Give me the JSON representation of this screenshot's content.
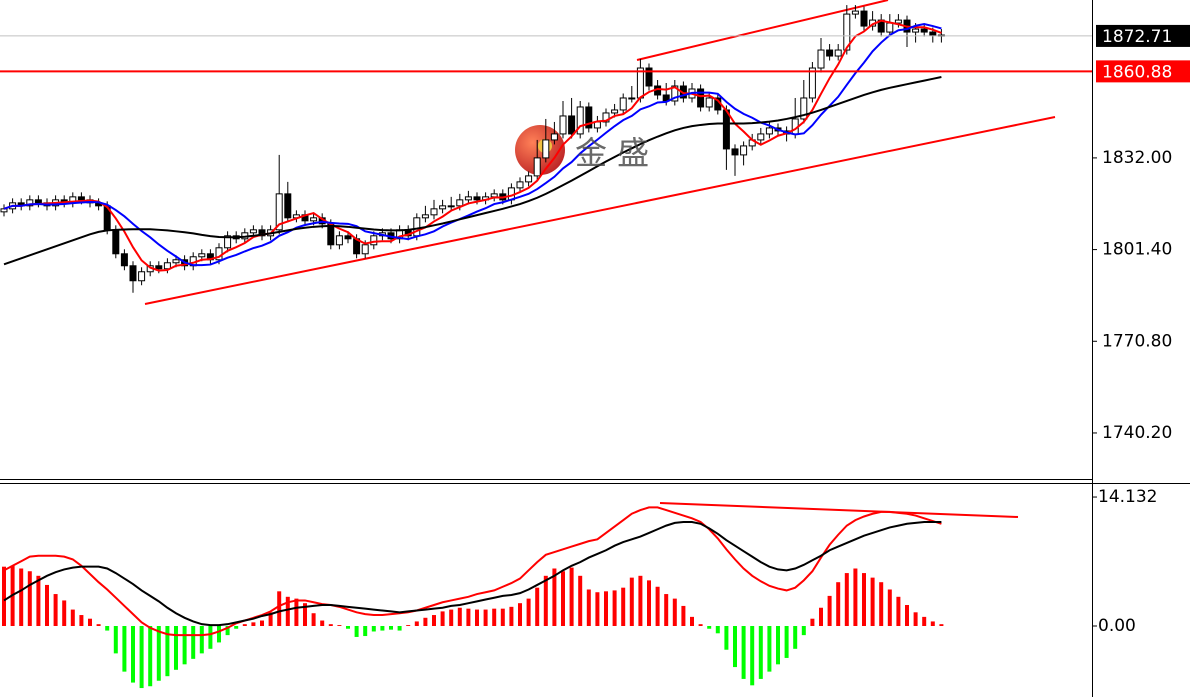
{
  "chart_data": [
    {
      "type": "candlestick",
      "ylim": [
        1724.5,
        1884.7
      ],
      "yticks": [
        {
          "value": 1740.2,
          "label": "1740.20"
        },
        {
          "value": 1770.8,
          "label": "1770.80"
        },
        {
          "value": 1801.4,
          "label": "1801.40"
        },
        {
          "value": 1832.0,
          "label": "1832.00"
        }
      ],
      "open": [
        1814,
        1815,
        1817,
        1816,
        1818,
        1817,
        1816,
        1818,
        1817,
        1819,
        1818,
        1817,
        1816,
        1808,
        1800,
        1796,
        1791,
        1794,
        1796,
        1795,
        1797,
        1798,
        1796,
        1799,
        1800,
        1798,
        1802,
        1806,
        1805,
        1807,
        1808,
        1806,
        1808,
        1820,
        1812,
        1813,
        1811,
        1812,
        1810,
        1803,
        1806,
        1805,
        1800,
        1803,
        1806,
        1807,
        1805,
        1808,
        1806,
        1812,
        1813,
        1815,
        1816,
        1816,
        1818,
        1819,
        1818,
        1819,
        1820,
        1818,
        1822,
        1824,
        1826,
        1832,
        1838,
        1840,
        1846,
        1840,
        1849,
        1842,
        1844,
        1847,
        1848,
        1852,
        1852,
        1862,
        1856,
        1853,
        1851,
        1856,
        1852,
        1855,
        1849,
        1852,
        1848,
        1835,
        1833,
        1836,
        1838,
        1840,
        1842,
        1841,
        1840,
        1845,
        1852,
        1862,
        1868,
        1866,
        1868,
        1880,
        1881,
        1876,
        1878,
        1874,
        1877,
        1878,
        1874,
        1875,
        1874,
        1873
      ],
      "high": [
        1816.5,
        1818.5,
        1818.5,
        1819.5,
        1819.5,
        1818.5,
        1819.5,
        1819.5,
        1820.5,
        1820.5,
        1819.5,
        1818.5,
        1817.5,
        1809.5,
        1801.5,
        1797.5,
        1795.5,
        1797.5,
        1797.5,
        1798.5,
        1799.5,
        1799.5,
        1800.5,
        1801.5,
        1801.5,
        1803.5,
        1807.5,
        1807.5,
        1808.5,
        1809.5,
        1809.5,
        1809.5,
        1833,
        1824,
        1814.5,
        1814.5,
        1813.5,
        1813.5,
        1811.5,
        1807.5,
        1807.5,
        1806.5,
        1804.5,
        1807.5,
        1808.5,
        1808.5,
        1809.5,
        1809.5,
        1813.5,
        1816,
        1818,
        1818,
        1819,
        1820,
        1821,
        1820.5,
        1820.5,
        1821.5,
        1821.5,
        1823.5,
        1825.5,
        1827.5,
        1838,
        1845,
        1844,
        1851,
        1852,
        1851,
        1850.5,
        1846,
        1848.5,
        1850,
        1853.5,
        1856,
        1865,
        1863.5,
        1858,
        1857,
        1858,
        1857.5,
        1857,
        1856.5,
        1853.5,
        1853.5,
        1849.5,
        1836.5,
        1837.5,
        1840,
        1842,
        1844,
        1843.5,
        1842.5,
        1852,
        1858,
        1864,
        1872,
        1870,
        1870,
        1883,
        1883,
        1882.5,
        1881,
        1880,
        1880,
        1880,
        1879.5,
        1877,
        1876.5,
        1875.5,
        1875
      ],
      "low": [
        1812.5,
        1813.5,
        1814.5,
        1814.5,
        1815.5,
        1814.5,
        1814.5,
        1815.5,
        1815.5,
        1816.5,
        1815.5,
        1814.5,
        1806.5,
        1798.5,
        1794.5,
        1787,
        1789.5,
        1792.5,
        1793.5,
        1793.5,
        1795.5,
        1794.5,
        1794.5,
        1797.5,
        1796.5,
        1796.5,
        1800.5,
        1803.5,
        1803.5,
        1805.5,
        1804.5,
        1804.5,
        1806.5,
        1810.5,
        1810.5,
        1809.5,
        1809.5,
        1808.5,
        1801.5,
        1801.5,
        1803.5,
        1798.5,
        1798.5,
        1801.5,
        1804.5,
        1803.5,
        1803.5,
        1804.5,
        1804.5,
        1810.5,
        1811.5,
        1813.5,
        1814.5,
        1814.5,
        1816.5,
        1816.5,
        1816.5,
        1817.5,
        1816.5,
        1816.5,
        1820.5,
        1822.5,
        1824.5,
        1830.5,
        1836.5,
        1838.5,
        1838.5,
        1838.5,
        1840.5,
        1840.5,
        1842.5,
        1845.5,
        1846.5,
        1850.5,
        1850.5,
        1854.5,
        1851.5,
        1849.5,
        1849.5,
        1850.5,
        1850.5,
        1847.5,
        1847.5,
        1846.5,
        1828,
        1826,
        1829.5,
        1834.5,
        1836.5,
        1838.5,
        1839.5,
        1837.5,
        1838.5,
        1843.5,
        1850.5,
        1860.5,
        1864.5,
        1864.5,
        1866.5,
        1878.5,
        1874.5,
        1874.5,
        1872.5,
        1872.5,
        1875.5,
        1869,
        1870.5,
        1872.5,
        1870.5,
        1870.5
      ],
      "close": [
        1815,
        1817,
        1816,
        1818,
        1817,
        1816,
        1818,
        1817,
        1819,
        1818,
        1817,
        1816,
        1808,
        1800,
        1796,
        1791,
        1794,
        1796,
        1795,
        1797,
        1798,
        1796,
        1799,
        1800,
        1798,
        1802,
        1806,
        1805,
        1807,
        1808,
        1806,
        1808,
        1820,
        1812,
        1813,
        1811,
        1812,
        1810,
        1803,
        1806,
        1805,
        1800,
        1803,
        1806,
        1807,
        1805,
        1808,
        1806,
        1812,
        1813,
        1815,
        1816,
        1816,
        1818,
        1819,
        1818,
        1819,
        1820,
        1818,
        1822,
        1824,
        1826,
        1832,
        1838,
        1840,
        1846,
        1840,
        1849,
        1842,
        1844,
        1847,
        1848,
        1852,
        1852,
        1862,
        1856,
        1853,
        1851,
        1856,
        1852,
        1855,
        1849,
        1852,
        1848,
        1835,
        1833,
        1836,
        1838,
        1840,
        1842,
        1841,
        1840,
        1845,
        1852,
        1862,
        1868,
        1866,
        1868,
        1880,
        1881,
        1876,
        1878,
        1874,
        1877,
        1878,
        1874,
        1875,
        1874,
        1873,
        1872.71
      ],
      "series": [
        {
          "color": "#ff0000",
          "values": [
            1815,
            1816,
            1816,
            1816.5,
            1816.6,
            1816.8,
            1817,
            1817.2,
            1817.4,
            1817.6,
            1817.8,
            1817.4,
            1815.6,
            1811.8,
            1807.4,
            1802.2,
            1797.8,
            1795.4,
            1794.4,
            1794.6,
            1796,
            1796.4,
            1797,
            1798,
            1798.2,
            1799,
            1801,
            1802.2,
            1803.6,
            1805.6,
            1806.4,
            1806.8,
            1809.8,
            1810.8,
            1811.8,
            1812.8,
            1813.6,
            1811.6,
            1809.8,
            1808.4,
            1807.2,
            1804.8,
            1803.4,
            1804,
            1804.2,
            1804.2,
            1805.8,
            1806.4,
            1807.6,
            1808.8,
            1810.8,
            1812.4,
            1814.4,
            1815.6,
            1816.8,
            1817.4,
            1818,
            1818.8,
            1818.8,
            1819.4,
            1820.6,
            1822,
            1824.4,
            1828.4,
            1832,
            1836.4,
            1839.2,
            1842.6,
            1843.4,
            1844.2,
            1844.4,
            1846,
            1846.6,
            1848.6,
            1852.2,
            1854,
            1855,
            1854.8,
            1855.6,
            1853.6,
            1853.4,
            1852.6,
            1852.8,
            1851.2,
            1847.8,
            1843.4,
            1840.8,
            1838,
            1836.4,
            1837.8,
            1839.4,
            1840.2,
            1841.6,
            1844,
            1848,
            1853.4,
            1858.6,
            1863.2,
            1868.8,
            1872.6,
            1874.2,
            1876.6,
            1877.8,
            1877.2,
            1876.6,
            1875.8,
            1875.6,
            1875.6,
            1874.8,
            1873.7
          ]
        },
        {
          "color": "#0000ff",
          "values": [
            1815,
            1816,
            1816,
            1816.5,
            1816.6,
            1816.4,
            1816.5,
            1816.6,
            1816.9,
            1817.1,
            1817.3,
            1817.2,
            1816.4,
            1814.6,
            1812.5,
            1810,
            1807.6,
            1805.5,
            1803.1,
            1801,
            1799.1,
            1797.1,
            1796.2,
            1796.2,
            1796.4,
            1797.5,
            1798.7,
            1799.6,
            1800.8,
            1801.9,
            1802.7,
            1803.9,
            1806,
            1807.2,
            1808.7,
            1809.6,
            1810.2,
            1810.7,
            1810.3,
            1810.1,
            1810,
            1809.2,
            1807.5,
            1806.9,
            1806.3,
            1805.7,
            1805.3,
            1804.9,
            1805.8,
            1806.5,
            1807.5,
            1809.1,
            1810.4,
            1811.6,
            1812.8,
            1814.1,
            1815.2,
            1816.6,
            1817.2,
            1818.1,
            1819,
            1820,
            1821.6,
            1823.6,
            1825.7,
            1828.5,
            1830.6,
            1833.5,
            1835.9,
            1838.1,
            1840.4,
            1842.6,
            1844.6,
            1846,
            1848.2,
            1849.2,
            1850.5,
            1850.7,
            1852.1,
            1852.9,
            1853.7,
            1853.8,
            1853.8,
            1853.4,
            1850.7,
            1848.4,
            1846.7,
            1845.4,
            1843.8,
            1842.8,
            1841.4,
            1840.5,
            1839.8,
            1840.2,
            1842.9,
            1846.4,
            1849.4,
            1852.4,
            1856.4,
            1860.3,
            1863.8,
            1867.6,
            1870.5,
            1873,
            1874.6,
            1875,
            1876.1,
            1876.7,
            1876,
            1875.2
          ]
        },
        {
          "color": "#000000",
          "values": [
            1796.5,
            1797.5,
            1798.5,
            1799.5,
            1800.5,
            1801.5,
            1802.5,
            1803.5,
            1804.5,
            1805.5,
            1806.5,
            1807.3,
            1807.8,
            1808,
            1808.1,
            1808.2,
            1808.2,
            1808.2,
            1808,
            1807.8,
            1807.5,
            1807.2,
            1806.8,
            1806.3,
            1805.9,
            1805.6,
            1805.5,
            1805.5,
            1805.7,
            1806,
            1806.4,
            1806.8,
            1807.3,
            1807.8,
            1808.3,
            1808.7,
            1809,
            1809.2,
            1809.3,
            1809.2,
            1809,
            1808.7,
            1808.4,
            1808.1,
            1807.9,
            1807.8,
            1807.8,
            1808,
            1808.4,
            1808.9,
            1809.5,
            1810.1,
            1810.8,
            1811.5,
            1812.2,
            1812.9,
            1813.6,
            1814.3,
            1815,
            1815.8,
            1816.6,
            1817.6,
            1818.7,
            1820,
            1821.4,
            1822.9,
            1824.4,
            1826,
            1827.6,
            1829.2,
            1830.8,
            1832.3,
            1833.8,
            1835.2,
            1836.6,
            1837.9,
            1839.1,
            1840.2,
            1841.2,
            1842,
            1842.6,
            1843,
            1843.3,
            1843.5,
            1843.5,
            1843.5,
            1843.5,
            1843.6,
            1843.8,
            1844.1,
            1844.5,
            1845,
            1845.6,
            1846.3,
            1847.1,
            1848,
            1849,
            1850,
            1851,
            1852,
            1853,
            1853.9,
            1854.7,
            1855.4,
            1856,
            1856.6,
            1857.2,
            1857.8,
            1858.4,
            1859
          ]
        }
      ],
      "price_lines": [
        {
          "value": 1872.71,
          "color": "#c0c0c0",
          "label_bg": "#000000"
        },
        {
          "value": 1860.88,
          "color": "#ff0000",
          "label_bg": "#ff0000"
        }
      ],
      "watermark": "金 盛"
    },
    {
      "type": "macd",
      "ylim": [
        -7.78,
        15.56
      ],
      "yticks": [
        {
          "value": 0,
          "label": "0.00"
        },
        14.132
      ],
      "up_color": "#ff0000",
      "down_color": "#00ff00",
      "values": [
        6.5,
        6.6,
        6.3,
        6.0,
        5.5,
        4.5,
        3.5,
        2.8,
        1.8,
        1.2,
        0.8,
        0.2,
        -0.5,
        -3.0,
        -5.0,
        -6.2,
        -6.8,
        -6.6,
        -6.0,
        -5.5,
        -4.8,
        -4.2,
        -3.6,
        -3.0,
        -2.5,
        -1.8,
        -1.0,
        -0.3,
        0.2,
        0.4,
        0.6,
        1.5,
        3.8,
        3.2,
        3.0,
        2.5,
        1.4,
        0.6,
        0.2,
        0.1,
        -0.3,
        -1.2,
        -1.1,
        -0.6,
        -0.5,
        -0.4,
        -0.5,
        0.1,
        0.5,
        0.9,
        1.2,
        1.6,
        1.8,
        2.0,
        1.9,
        1.8,
        1.8,
        1.9,
        1.9,
        2.1,
        2.5,
        3.0,
        4.2,
        5.5,
        6.3,
        6.0,
        6.4,
        5.5,
        4.0,
        3.7,
        3.8,
        3.9,
        4.2,
        5.3,
        5.5,
        5.0,
        4.3,
        3.5,
        3.0,
        2.2,
        1.0,
        0.2,
        -0.3,
        -0.8,
        -2.6,
        -4.5,
        -5.8,
        -6.5,
        -5.8,
        -5.0,
        -4.2,
        -3.5,
        -2.5,
        -1.0,
        0.8,
        2.0,
        3.3,
        4.8,
        5.8,
        6.3,
        5.8,
        5.3,
        4.8,
        4.0,
        3.2,
        2.3,
        1.5,
        1.0,
        0.5,
        0.2
      ],
      "series": [
        {
          "color": "#ff0000",
          "values": [
            6.1,
            6.6,
            7.1,
            7.6,
            7.7,
            7.7,
            7.7,
            7.6,
            7.3,
            6.6,
            5.7,
            4.8,
            4.0,
            3.1,
            2.2,
            1.3,
            0.4,
            -0.2,
            -0.6,
            -0.9,
            -1.0,
            -1.0,
            -1.0,
            -1.0,
            -0.9,
            -0.6,
            -0.2,
            0.3,
            0.6,
            0.9,
            1.2,
            1.6,
            2.2,
            2.6,
            2.8,
            2.8,
            2.6,
            2.4,
            2.3,
            2.1,
            1.8,
            1.5,
            1.3,
            1.2,
            1.2,
            1.3,
            1.4,
            1.5,
            1.7,
            2.0,
            2.3,
            2.6,
            2.8,
            3.0,
            3.2,
            3.5,
            3.7,
            3.9,
            4.3,
            4.7,
            5.2,
            6.1,
            7.0,
            7.8,
            8.1,
            8.4,
            8.7,
            9.0,
            9.3,
            9.5,
            10.2,
            10.9,
            11.6,
            12.3,
            12.7,
            13.0,
            13.0,
            12.7,
            12.4,
            12.1,
            11.8,
            11.4,
            10.6,
            9.6,
            8.4,
            7.3,
            6.3,
            5.5,
            4.9,
            4.4,
            4.1,
            3.9,
            4.2,
            5.0,
            6.0,
            7.5,
            8.9,
            10.0,
            11.0,
            11.6,
            12.0,
            12.3,
            12.5,
            12.5,
            12.4,
            12.3,
            12.1,
            11.8,
            11.5,
            11.2
          ]
        },
        {
          "color": "#000000",
          "values": [
            2.8,
            3.4,
            3.9,
            4.5,
            5.0,
            5.5,
            5.9,
            6.2,
            6.4,
            6.5,
            6.5,
            6.5,
            6.3,
            5.8,
            5.2,
            4.6,
            3.9,
            3.3,
            2.7,
            2.0,
            1.4,
            0.9,
            0.5,
            0.2,
            0.1,
            0.1,
            0.2,
            0.4,
            0.6,
            0.8,
            1.1,
            1.3,
            1.6,
            1.8,
            2.0,
            2.1,
            2.2,
            2.3,
            2.3,
            2.2,
            2.1,
            2.0,
            1.9,
            1.8,
            1.7,
            1.6,
            1.5,
            1.6,
            1.7,
            1.8,
            1.9,
            2.0,
            2.2,
            2.3,
            2.5,
            2.7,
            2.9,
            3.1,
            3.3,
            3.4,
            3.6,
            4.0,
            4.5,
            5.0,
            5.5,
            6.1,
            6.6,
            7.0,
            7.5,
            7.9,
            8.3,
            8.8,
            9.2,
            9.5,
            9.8,
            10.2,
            10.6,
            11.0,
            11.3,
            11.4,
            11.4,
            11.2,
            10.7,
            10.1,
            9.4,
            8.8,
            8.2,
            7.6,
            7.0,
            6.5,
            6.2,
            6.1,
            6.3,
            6.7,
            7.2,
            7.7,
            8.3,
            8.7,
            9.1,
            9.5,
            9.9,
            10.2,
            10.5,
            10.8,
            11.0,
            11.2,
            11.3,
            11.4,
            11.4,
            11.4
          ]
        }
      ]
    }
  ]
}
